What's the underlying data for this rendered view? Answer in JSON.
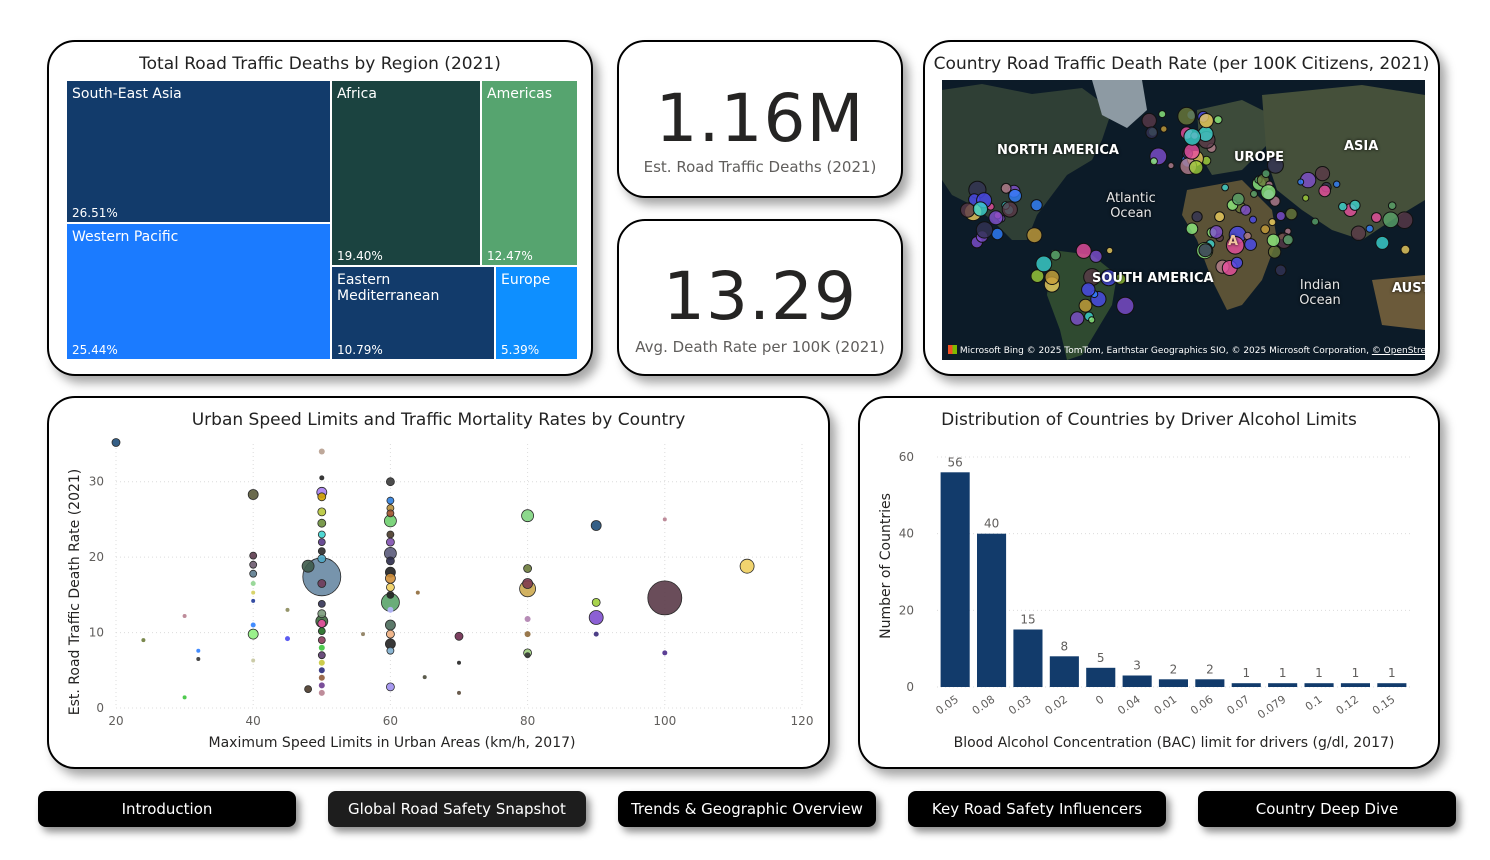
{
  "treemap": {
    "title": "Total Road Traffic Deaths by Region (2021)",
    "cells": [
      {
        "name": "South-East Asia",
        "pct": "26.51%",
        "color": "#123b6b"
      },
      {
        "name": "Western Pacific",
        "pct": "25.44%",
        "color": "#1b7bff"
      },
      {
        "name": "Africa",
        "pct": "19.40%",
        "color": "#1b4340"
      },
      {
        "name": "Americas",
        "pct": "12.47%",
        "color": "#56a46f"
      },
      {
        "name": "Eastern Mediterranean",
        "pct": "10.79%",
        "color": "#123b6b"
      },
      {
        "name": "Europe",
        "pct": "5.39%",
        "color": "#0e8fff"
      }
    ]
  },
  "kpi_deaths": {
    "value": "1.16M",
    "label": "Est. Road Traffic Deaths (2021)"
  },
  "kpi_rate": {
    "value": "13.29",
    "label": "Avg. Death Rate per 100K (2021)"
  },
  "map": {
    "title": "Country Road Traffic Death Rate (per 100K Citizens, 2021)",
    "labels": {
      "north_america": "NORTH AMERICA",
      "europe": "UROPE",
      "asia": "ASIA",
      "south_america": "SOUTH AMERICA",
      "aust": "AUST",
      "atlantic_ocean": "Atlantic Ocean",
      "indian_ocean": "Indian Ocean",
      "africa": "A"
    },
    "brand": "Microsoft Bing",
    "attribution": "© 2025 TomTom, Earthstar Geographics SIO, © 2025 Microsoft Corporation,",
    "attribution_link": "© OpenStreetMap"
  },
  "scatter": {
    "title": "Urban Speed Limits and Traffic Mortality Rates by Country",
    "chart_data": {
      "type": "scatter",
      "title": "Urban Speed Limits and Traffic Mortality Rates by Country",
      "xlabel": "Maximum Speed Limits in Urban Areas (km/h, 2017)",
      "ylabel": "Est. Road Traffic Death Rate (2021)",
      "xlim": [
        20,
        120
      ],
      "ylim": [
        0,
        35
      ],
      "xticks": [
        "20",
        "40",
        "60",
        "80",
        "100",
        "120"
      ],
      "yticks": [
        "0",
        "10",
        "20",
        "30"
      ],
      "points": [
        {
          "x": 20,
          "y": 35.2,
          "s": 4,
          "c": "#1f4e79"
        },
        {
          "x": 24,
          "y": 9,
          "s": 2,
          "c": "#6b7b3a"
        },
        {
          "x": 30,
          "y": 12.2,
          "s": 2,
          "c": "#b77f8f"
        },
        {
          "x": 30,
          "y": 1.4,
          "s": 2,
          "c": "#3cc43c"
        },
        {
          "x": 32,
          "y": 7.6,
          "s": 2,
          "c": "#2f7fff"
        },
        {
          "x": 32,
          "y": 6.5,
          "s": 2,
          "c": "#333333"
        },
        {
          "x": 40,
          "y": 28.3,
          "s": 5,
          "c": "#5a5a3a"
        },
        {
          "x": 40,
          "y": 20.2,
          "s": 3.5,
          "c": "#5c3b4e"
        },
        {
          "x": 40,
          "y": 19,
          "s": 3.5,
          "c": "#6b5a6e"
        },
        {
          "x": 40,
          "y": 17.8,
          "s": 3.5,
          "c": "#5c7b8e"
        },
        {
          "x": 40,
          "y": 16.5,
          "s": 2.5,
          "c": "#8fd48f"
        },
        {
          "x": 40,
          "y": 15.3,
          "s": 2,
          "c": "#d4cf5c"
        },
        {
          "x": 40,
          "y": 14.2,
          "s": 2,
          "c": "#1f3a99"
        },
        {
          "x": 40,
          "y": 11,
          "s": 2.5,
          "c": "#2f7fff"
        },
        {
          "x": 40,
          "y": 9.8,
          "s": 5,
          "c": "#8fef7f"
        },
        {
          "x": 40,
          "y": 6.3,
          "s": 2,
          "c": "#c7c79f"
        },
        {
          "x": 45,
          "y": 13,
          "s": 2,
          "c": "#8a8a5a"
        },
        {
          "x": 45,
          "y": 9.2,
          "s": 2.5,
          "c": "#4a4af0"
        },
        {
          "x": 48,
          "y": 18.8,
          "s": 6,
          "c": "#3d5a4a"
        },
        {
          "x": 48,
          "y": 2.5,
          "s": 3.5,
          "c": "#4a3a2a"
        },
        {
          "x": 50,
          "y": 34,
          "s": 3,
          "c": "#b79f8f"
        },
        {
          "x": 50,
          "y": 30.5,
          "s": 2.5,
          "c": "#222222"
        },
        {
          "x": 50,
          "y": 28.6,
          "s": 5,
          "c": "#a87fef"
        },
        {
          "x": 50,
          "y": 28,
          "s": 4,
          "c": "#d0a000"
        },
        {
          "x": 50,
          "y": 26,
          "s": 4,
          "c": "#b7c73a"
        },
        {
          "x": 50,
          "y": 24.5,
          "s": 4,
          "c": "#6b8f3a"
        },
        {
          "x": 50,
          "y": 23,
          "s": 3.5,
          "c": "#3cd4cf"
        },
        {
          "x": 50,
          "y": 22,
          "s": 3.5,
          "c": "#5a3a8a"
        },
        {
          "x": 50,
          "y": 20.8,
          "s": 3.5,
          "c": "#2a2a2a"
        },
        {
          "x": 50,
          "y": 19.8,
          "s": 4,
          "c": "#4fa8c7"
        },
        {
          "x": 50,
          "y": 17.4,
          "s": 19,
          "c": "#4a7090",
          "o": 0.75
        },
        {
          "x": 50,
          "y": 16.5,
          "s": 4,
          "c": "#6f3b5a"
        },
        {
          "x": 50,
          "y": 13.8,
          "s": 3.5,
          "c": "#333355"
        },
        {
          "x": 50,
          "y": 12.5,
          "s": 4,
          "c": "#7a9a7a"
        },
        {
          "x": 50,
          "y": 11.5,
          "s": 6,
          "c": "#3c6a3c"
        },
        {
          "x": 50,
          "y": 11.2,
          "s": 4,
          "c": "#e84f9f"
        },
        {
          "x": 50,
          "y": 10.2,
          "s": 3.5,
          "c": "#1f6a1f"
        },
        {
          "x": 50,
          "y": 9,
          "s": 3.5,
          "c": "#8a3a5a"
        },
        {
          "x": 50,
          "y": 8,
          "s": 3,
          "c": "#3cc43c"
        },
        {
          "x": 50,
          "y": 7,
          "s": 3.5,
          "c": "#5a3a6e"
        },
        {
          "x": 50,
          "y": 6,
          "s": 3,
          "c": "#c7c73a"
        },
        {
          "x": 50,
          "y": 5,
          "s": 3,
          "c": "#2a2a7a"
        },
        {
          "x": 50,
          "y": 4,
          "s": 3,
          "c": "#8f5a3a"
        },
        {
          "x": 50,
          "y": 3,
          "s": 3,
          "c": "#6b3b8e"
        },
        {
          "x": 50,
          "y": 2,
          "s": 3,
          "c": "#b77f8f"
        },
        {
          "x": 56,
          "y": 9.8,
          "s": 2,
          "c": "#8a7a5a"
        },
        {
          "x": 60,
          "y": 30,
          "s": 4,
          "c": "#3a3a3a"
        },
        {
          "x": 60,
          "y": 27.5,
          "s": 3.5,
          "c": "#2f7fdf"
        },
        {
          "x": 60,
          "y": 26.5,
          "s": 3.5,
          "c": "#b78f3a"
        },
        {
          "x": 60,
          "y": 25.8,
          "s": 3.5,
          "c": "#a0522d"
        },
        {
          "x": 60,
          "y": 24.8,
          "s": 6,
          "c": "#6fcf6f"
        },
        {
          "x": 60,
          "y": 23,
          "s": 3.5,
          "c": "#4a3a2a"
        },
        {
          "x": 60,
          "y": 22,
          "s": 4,
          "c": "#7f4faf"
        },
        {
          "x": 60,
          "y": 20.5,
          "s": 6,
          "c": "#5a5a7a"
        },
        {
          "x": 60,
          "y": 19.5,
          "s": 4,
          "c": "#2a2a4a"
        },
        {
          "x": 60,
          "y": 18,
          "s": 5,
          "c": "#1f1f1f"
        },
        {
          "x": 60,
          "y": 17.2,
          "s": 5,
          "c": "#d08f3a"
        },
        {
          "x": 60,
          "y": 16,
          "s": 4,
          "c": "#efcf5f"
        },
        {
          "x": 60,
          "y": 15,
          "s": 3.5,
          "c": "#222222"
        },
        {
          "x": 60,
          "y": 14,
          "s": 9,
          "c": "#5aa46a"
        },
        {
          "x": 60,
          "y": 13,
          "s": 3,
          "c": "#b7b7ff"
        },
        {
          "x": 60,
          "y": 11,
          "s": 5,
          "c": "#4a6a5a"
        },
        {
          "x": 60,
          "y": 9.8,
          "s": 4,
          "c": "#efaf7f"
        },
        {
          "x": 60,
          "y": 8.5,
          "s": 5,
          "c": "#222222"
        },
        {
          "x": 60,
          "y": 7.6,
          "s": 3.5,
          "c": "#7fafcf"
        },
        {
          "x": 60,
          "y": 2.8,
          "s": 4,
          "c": "#9f8fef"
        },
        {
          "x": 64,
          "y": 15.3,
          "s": 2,
          "c": "#8f6a3a"
        },
        {
          "x": 65,
          "y": 4.1,
          "s": 2,
          "c": "#4a4a3a"
        },
        {
          "x": 70,
          "y": 9.5,
          "s": 4,
          "c": "#6f2b4f"
        },
        {
          "x": 70,
          "y": 6,
          "s": 2,
          "c": "#222222"
        },
        {
          "x": 70,
          "y": 2,
          "s": 2,
          "c": "#5a4a3a"
        },
        {
          "x": 80,
          "y": 25.5,
          "s": 6,
          "c": "#7fd47f"
        },
        {
          "x": 80,
          "y": 18.5,
          "s": 4,
          "c": "#6b7b3a"
        },
        {
          "x": 80,
          "y": 16.5,
          "s": 5,
          "c": "#7f3b4f"
        },
        {
          "x": 80,
          "y": 15.8,
          "s": 8,
          "c": "#c79f3a",
          "o": 0.8
        },
        {
          "x": 80,
          "y": 11.8,
          "s": 3,
          "c": "#af7faf"
        },
        {
          "x": 80,
          "y": 9.8,
          "s": 3,
          "c": "#8f6a3a"
        },
        {
          "x": 80,
          "y": 7.3,
          "s": 4,
          "c": "#9fcf7f"
        },
        {
          "x": 80,
          "y": 7,
          "s": 3,
          "c": "#333333"
        },
        {
          "x": 90,
          "y": 24.2,
          "s": 5,
          "c": "#1f4e79"
        },
        {
          "x": 90,
          "y": 14,
          "s": 4,
          "c": "#9fcf3a"
        },
        {
          "x": 90,
          "y": 12,
          "s": 7,
          "c": "#7f4fcf"
        },
        {
          "x": 90,
          "y": 9.8,
          "s": 2.5,
          "c": "#3a2a7a"
        },
        {
          "x": 100,
          "y": 25,
          "s": 2,
          "c": "#b77f8f"
        },
        {
          "x": 100,
          "y": 14.6,
          "s": 17,
          "c": "#5a3a48"
        },
        {
          "x": 100,
          "y": 7.3,
          "s": 2.5,
          "c": "#4a2a8a"
        },
        {
          "x": 112,
          "y": 18.8,
          "s": 7,
          "c": "#efcf5f"
        }
      ]
    }
  },
  "bars": {
    "title": "Distribution of Countries by Driver Alcohol Limits",
    "chart_data": {
      "type": "bar",
      "title": "Distribution of Countries by Driver Alcohol Limits",
      "categories": [
        "0.05",
        "0.08",
        "0.03",
        "0.02",
        "0",
        "0.04",
        "0.01",
        "0.06",
        "0.07",
        "0.079",
        "0.1",
        "0.12",
        "0.15"
      ],
      "values": [
        56,
        40,
        15,
        8,
        5,
        3,
        2,
        2,
        1,
        1,
        1,
        1,
        1
      ],
      "xlabel": "Blood Alcohol Concentration (BAC) limit for drivers (g/dl, 2017)",
      "ylabel": "Number of Countries",
      "ylim": [
        0,
        60
      ],
      "yticks": [
        "0",
        "20",
        "40",
        "60"
      ],
      "color": "#123b6b"
    }
  },
  "nav": {
    "items": [
      {
        "label": "Introduction"
      },
      {
        "label": "Global Road Safety Snapshot"
      },
      {
        "label": "Trends & Geographic Overview"
      },
      {
        "label": "Key Road Safety Influencers"
      },
      {
        "label": "Country Deep Dive"
      }
    ]
  }
}
